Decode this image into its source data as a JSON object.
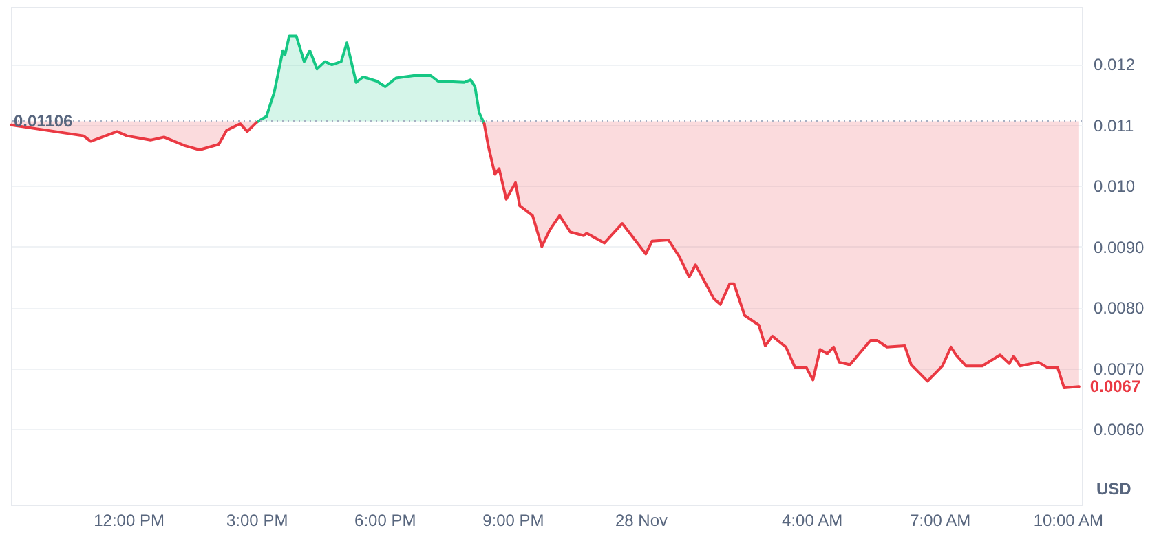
{
  "chart_data": {
    "type": "line",
    "ylabel": "USD",
    "xlim": [
      "--11-27T09:15",
      "--11-28T10:20"
    ],
    "xticks": [
      {
        "value": "--11-27T12:00",
        "label": "12:00 PM"
      },
      {
        "value": "--11-27T15:00",
        "label": "3:00 PM"
      },
      {
        "value": "--11-27T18:00",
        "label": "6:00 PM"
      },
      {
        "value": "--11-27T21:00",
        "label": "9:00 PM"
      },
      {
        "value": "--11-28",
        "label": "28 Nov"
      },
      {
        "value": "--11-28T04:00",
        "label": "4:00 AM"
      },
      {
        "value": "--11-28T07:00",
        "label": "7:00 AM"
      },
      {
        "value": "--11-28T10:00",
        "label": "10:00 AM"
      }
    ],
    "ylim": [
      0.00476,
      0.01294
    ],
    "yticks": [
      {
        "value": 0.006,
        "label": "0.0060"
      },
      {
        "value": 0.007,
        "label": "0.0070"
      },
      {
        "value": 0.008,
        "label": "0.0080"
      },
      {
        "value": 0.009,
        "label": "0.0090"
      },
      {
        "value": 0.01,
        "label": "0.010"
      },
      0.011,
      0.012
    ],
    "grid": "y",
    "ref_lines": [
      {
        "axis": "y",
        "value": 0.01106,
        "label": "0.01106",
        "color": "#a6b0c3",
        "line_style": "dotted"
      }
    ],
    "annotations": [
      {
        "text": "0.0067",
        "x": "--11-28T10:16",
        "y": 0.0067
      }
    ],
    "series": [
      {
        "color": "#16c784",
        "x": [
          "--11-27T15:00",
          "--11-27T15:14",
          "--11-27T15:25",
          "--11-27T15:37",
          "--11-27T15:40",
          "--11-27T15:46",
          "--11-27T15:56",
          "--11-27T16:07",
          "--11-27T16:15",
          "--11-27T16:25",
          "--11-27T16:36",
          "--11-27T16:46",
          "--11-27T16:59",
          "--11-27T17:07",
          "--11-27T17:20",
          "--11-27T17:30",
          "--11-27T17:49",
          "--11-27T18:01",
          "--11-27T18:16",
          "--11-27T18:41",
          "--11-27T19:05",
          "--11-27T19:15",
          "--11-27T19:52",
          "--11-27T20:01",
          "--11-27T20:07",
          "--11-27T20:13",
          "--11-27T20:20"
        ],
        "values": [
          0.01104,
          0.01114,
          0.01154,
          0.01222,
          0.01215,
          0.01246,
          0.01246,
          0.01204,
          0.01222,
          0.01192,
          0.01204,
          0.01199,
          0.01204,
          0.01235,
          0.0117,
          0.01179,
          0.01172,
          0.01163,
          0.01177,
          0.01181,
          0.01181,
          0.01172,
          0.0117,
          0.01174,
          0.01163,
          0.0112,
          0.01102
        ]
      },
      {
        "color": "#ea3943",
        "x": [
          "--11-27T09:15",
          "--11-27T10:57",
          "--11-27T11:07",
          "--11-27T11:44",
          "--11-27T11:58",
          "--11-27T12:31",
          "--11-27T12:50",
          "--11-27T13:19",
          "--11-27T13:40",
          "--11-27T14:07",
          "--11-27T14:18",
          "--11-27T14:37",
          "--11-27T14:47",
          "--11-27T15:00",
          "--11-27T15:14",
          "--11-27T20:13",
          "--11-27T20:20",
          "--11-27T20:26",
          "--11-27T20:35",
          "--11-27T20:41",
          "--11-27T20:51",
          "--11-27T21:04",
          "--11-27T21:10",
          "--11-27T21:28",
          "--11-27T21:41",
          "--11-27T21:52",
          "--11-27T22:06",
          "--11-27T22:21",
          "--11-27T22:40",
          "--11-27T22:44",
          "--11-27T23:09",
          "--11-27T23:34",
          "--11-28T00:07",
          "--11-28T00:16",
          "--11-28T00:39",
          "--11-28T00:55",
          "--11-28T01:08",
          "--11-28T01:17",
          "--11-28T01:43",
          "--11-28T01:52",
          "--11-28T02:05",
          "--11-28T02:11",
          "--11-28T02:26",
          "--11-28T02:46",
          "--11-28T02:55",
          "--11-28T03:05",
          "--11-28T03:24",
          "--11-28T03:37",
          "--11-28T03:53",
          "--11-28T04:02",
          "--11-28T04:12",
          "--11-28T04:22",
          "--11-28T04:31",
          "--11-28T04:39",
          "--11-28T04:54",
          "--11-28T05:23",
          "--11-28T05:32",
          "--11-28T05:46",
          "--11-28T06:11",
          "--11-28T06:20",
          "--11-28T06:43",
          "--11-28T07:04",
          "--11-28T07:16",
          "--11-28T07:23",
          "--11-28T07:37",
          "--11-28T08:00",
          "--11-28T08:25",
          "--11-28T08:38",
          "--11-28T08:44",
          "--11-28T08:53",
          "--11-28T09:19",
          "--11-28T09:32",
          "--11-28T09:46",
          "--11-28T09:55",
          "--11-28T10:16"
        ],
        "values": [
          0.011,
          0.01082,
          0.01073,
          0.01089,
          0.01082,
          0.01075,
          0.0108,
          0.01066,
          0.01059,
          0.01068,
          0.01091,
          0.01102,
          0.01089,
          0.01104,
          null,
          null,
          0.01102,
          0.01064,
          0.01019,
          0.01028,
          0.00978,
          0.01005,
          0.00967,
          0.00951,
          0.009,
          0.00927,
          0.00951,
          0.00924,
          0.00918,
          0.00922,
          0.00906,
          0.00938,
          0.00888,
          0.00909,
          0.00911,
          0.00882,
          0.0085,
          0.0087,
          0.00814,
          0.00805,
          0.00839,
          0.00839,
          0.00787,
          0.00771,
          0.00737,
          0.00753,
          0.00735,
          0.00701,
          0.00701,
          0.00681,
          0.00731,
          0.00724,
          0.00735,
          0.0071,
          0.00706,
          0.00746,
          0.00746,
          0.00735,
          0.00737,
          0.00706,
          0.00679,
          0.00704,
          0.00735,
          0.00722,
          0.00704,
          0.00704,
          0.00722,
          0.00708,
          0.0072,
          0.00704,
          0.0071,
          0.00701,
          0.00701,
          0.00668,
          0.0067
        ]
      }
    ]
  }
}
